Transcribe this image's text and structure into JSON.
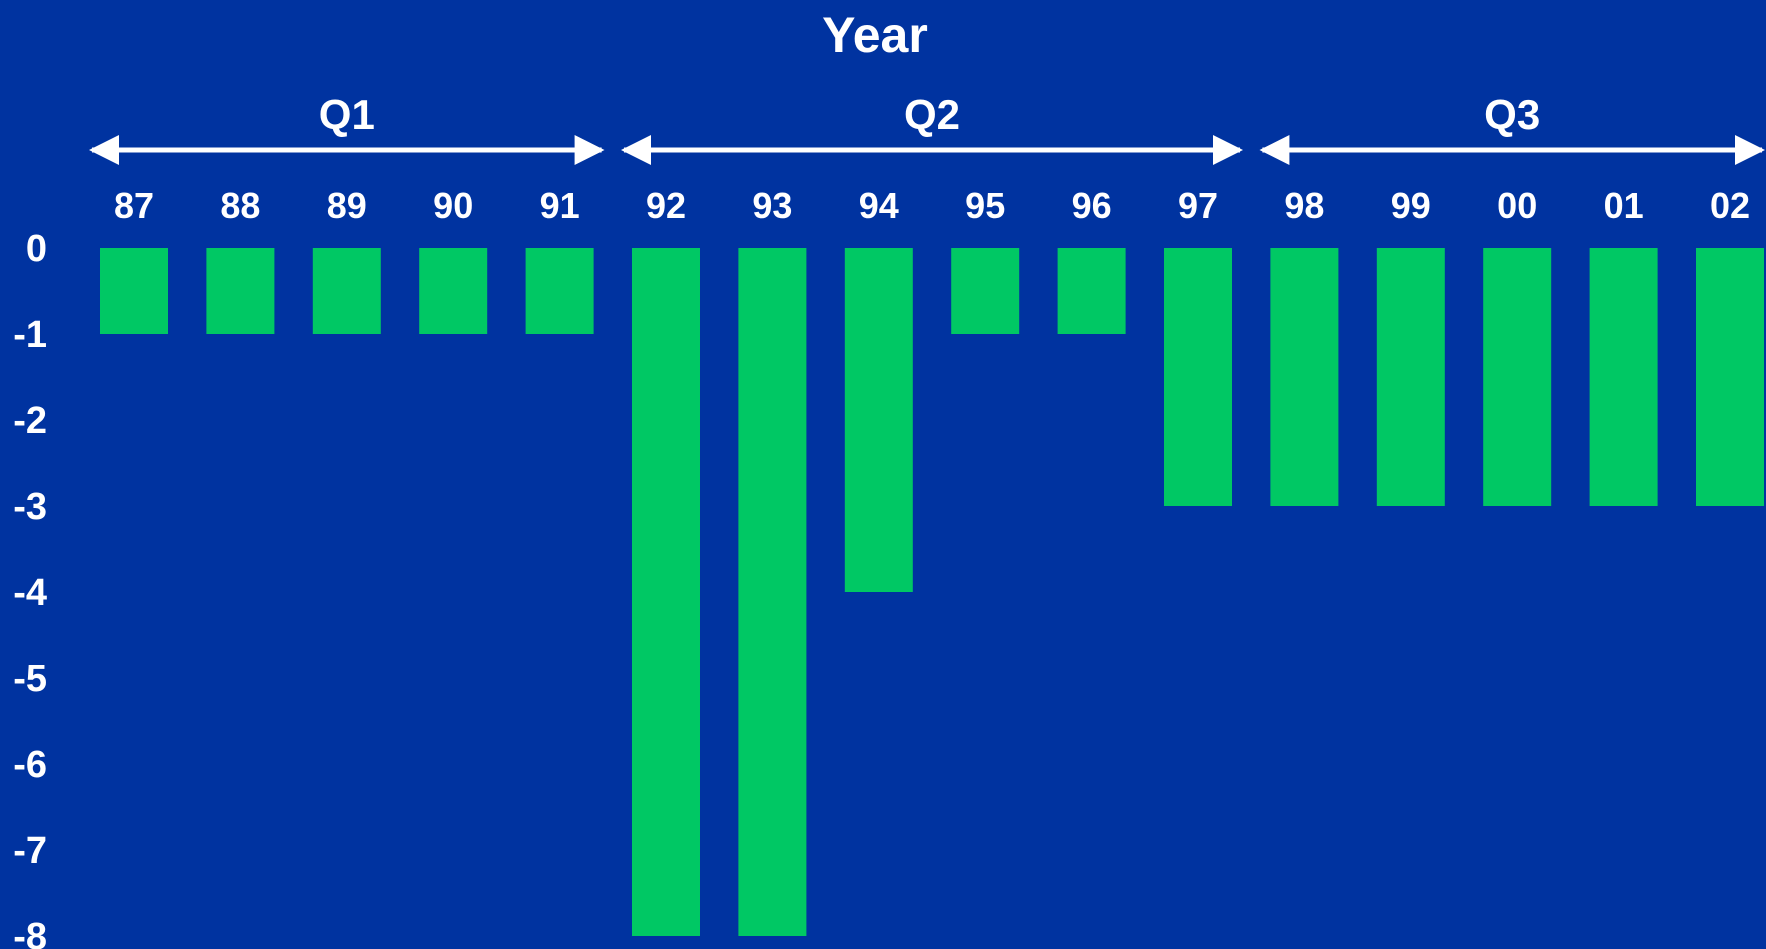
{
  "colors": {
    "background": "#0033a0",
    "bar": "#00c864",
    "text": "#ffffff"
  },
  "chart_data": {
    "type": "bar",
    "xlabel": "Year",
    "categories": [
      "87",
      "88",
      "89",
      "90",
      "91",
      "92",
      "93",
      "94",
      "95",
      "96",
      "97",
      "98",
      "99",
      "00",
      "01",
      "02"
    ],
    "values": [
      -1,
      -1,
      -1,
      -1,
      -1,
      -8,
      -8,
      -4,
      -1,
      -1,
      -3,
      -3,
      -3,
      -3,
      -3,
      -3
    ],
    "ylim": [
      -8,
      0
    ],
    "yticks": [
      "0",
      "-1",
      "-2",
      "-3",
      "-4",
      "-5",
      "-6",
      "-7",
      "-8"
    ],
    "groups": [
      {
        "label": "Q1",
        "first": "87",
        "last": "91"
      },
      {
        "label": "Q2",
        "first": "92",
        "last": "97"
      },
      {
        "label": "Q3",
        "first": "98",
        "last": "02"
      }
    ],
    "grid": false,
    "legend": "none"
  }
}
